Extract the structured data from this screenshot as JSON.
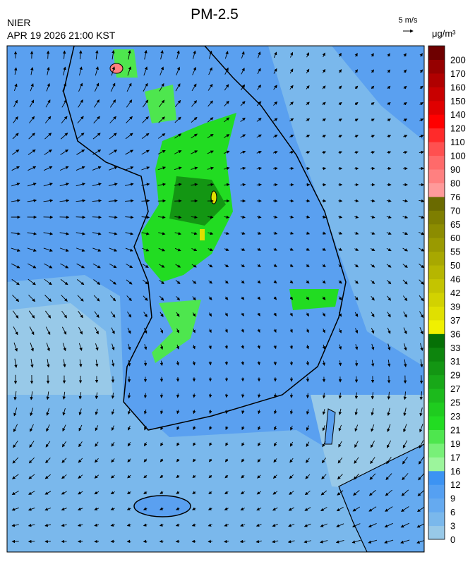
{
  "map": {
    "title": "PM-2.5",
    "source": "NIER",
    "datetime": "APR 19 2026 21:00 KST",
    "wind_scale": "5 m/s",
    "unit": "μg/m³",
    "legend": {
      "values": [
        0,
        3,
        6,
        9,
        12,
        16,
        17,
        19,
        21,
        23,
        25,
        27,
        29,
        31,
        33,
        36,
        37,
        39,
        42,
        46,
        50,
        55,
        60,
        65,
        70,
        76,
        80,
        90,
        100,
        110,
        120,
        140,
        150,
        160,
        170,
        200
      ],
      "colors": [
        "#98c9e8",
        "#7ab8ec",
        "#65aaf0",
        "#55a0f2",
        "#3c93f3",
        "#9cf59c",
        "#78f078",
        "#4ee64e",
        "#22dc22",
        "#1fcc1f",
        "#1cba1c",
        "#18a818",
        "#139613",
        "#0d850d",
        "#067006",
        "#f0f000",
        "#e0e000",
        "#d2d200",
        "#c4c400",
        "#b6b600",
        "#a8a800",
        "#9a9a00",
        "#8c8c00",
        "#7e7e00",
        "#6a6a00",
        "#ff9a9a",
        "#ff8080",
        "#ff6a6a",
        "#ff5050",
        "#ff2a2a",
        "#ff0000",
        "#e00000",
        "#c80000",
        "#b00000",
        "#960000",
        "#6e0000"
      ]
    }
  }
}
